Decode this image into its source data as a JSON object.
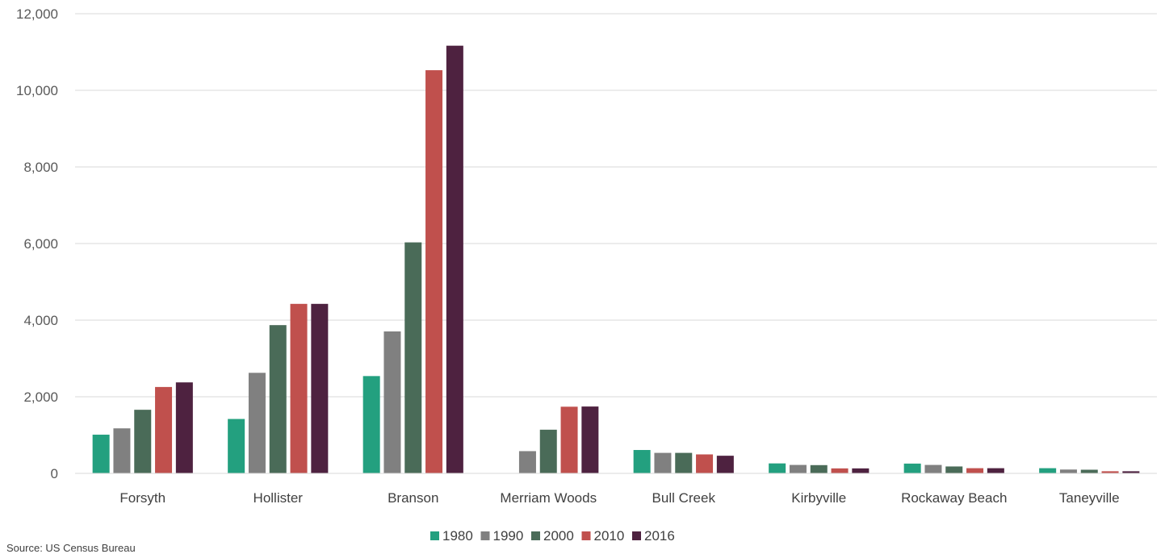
{
  "source_note": "Source: US Census Bureau",
  "chart_data": {
    "type": "bar",
    "title": "",
    "xlabel": "",
    "ylabel": "",
    "ylim": [
      0,
      12000
    ],
    "yticks": [
      0,
      2000,
      4000,
      6000,
      8000,
      10000,
      12000
    ],
    "ytick_labels": [
      "0",
      "2,000",
      "4,000",
      "6,000",
      "8,000",
      "10,000",
      "12,000"
    ],
    "grid": true,
    "legend_position": "bottom",
    "categories": [
      "Forsyth",
      "Hollister",
      "Branson",
      "Merriam Woods",
      "Bull Creek",
      "Kirbyville",
      "Rockaway Beach",
      "Taneyville"
    ],
    "series": [
      {
        "name": "1980",
        "color": "#23a07f",
        "values": [
          1010,
          1420,
          2540,
          0,
          610,
          260,
          255,
          135
        ]
      },
      {
        "name": "1990",
        "color": "#808080",
        "values": [
          1175,
          2625,
          3705,
          580,
          535,
          220,
          220,
          100
        ]
      },
      {
        "name": "2000",
        "color": "#4a6b58",
        "values": [
          1660,
          3870,
          6030,
          1140,
          535,
          215,
          180,
          95
        ]
      },
      {
        "name": "2010",
        "color": "#c0504d",
        "values": [
          2255,
          4425,
          10525,
          1740,
          495,
          130,
          135,
          55
        ]
      },
      {
        "name": "2016",
        "color": "#4e2240",
        "values": [
          2375,
          4425,
          11165,
          1745,
          460,
          130,
          135,
          55
        ]
      }
    ]
  }
}
